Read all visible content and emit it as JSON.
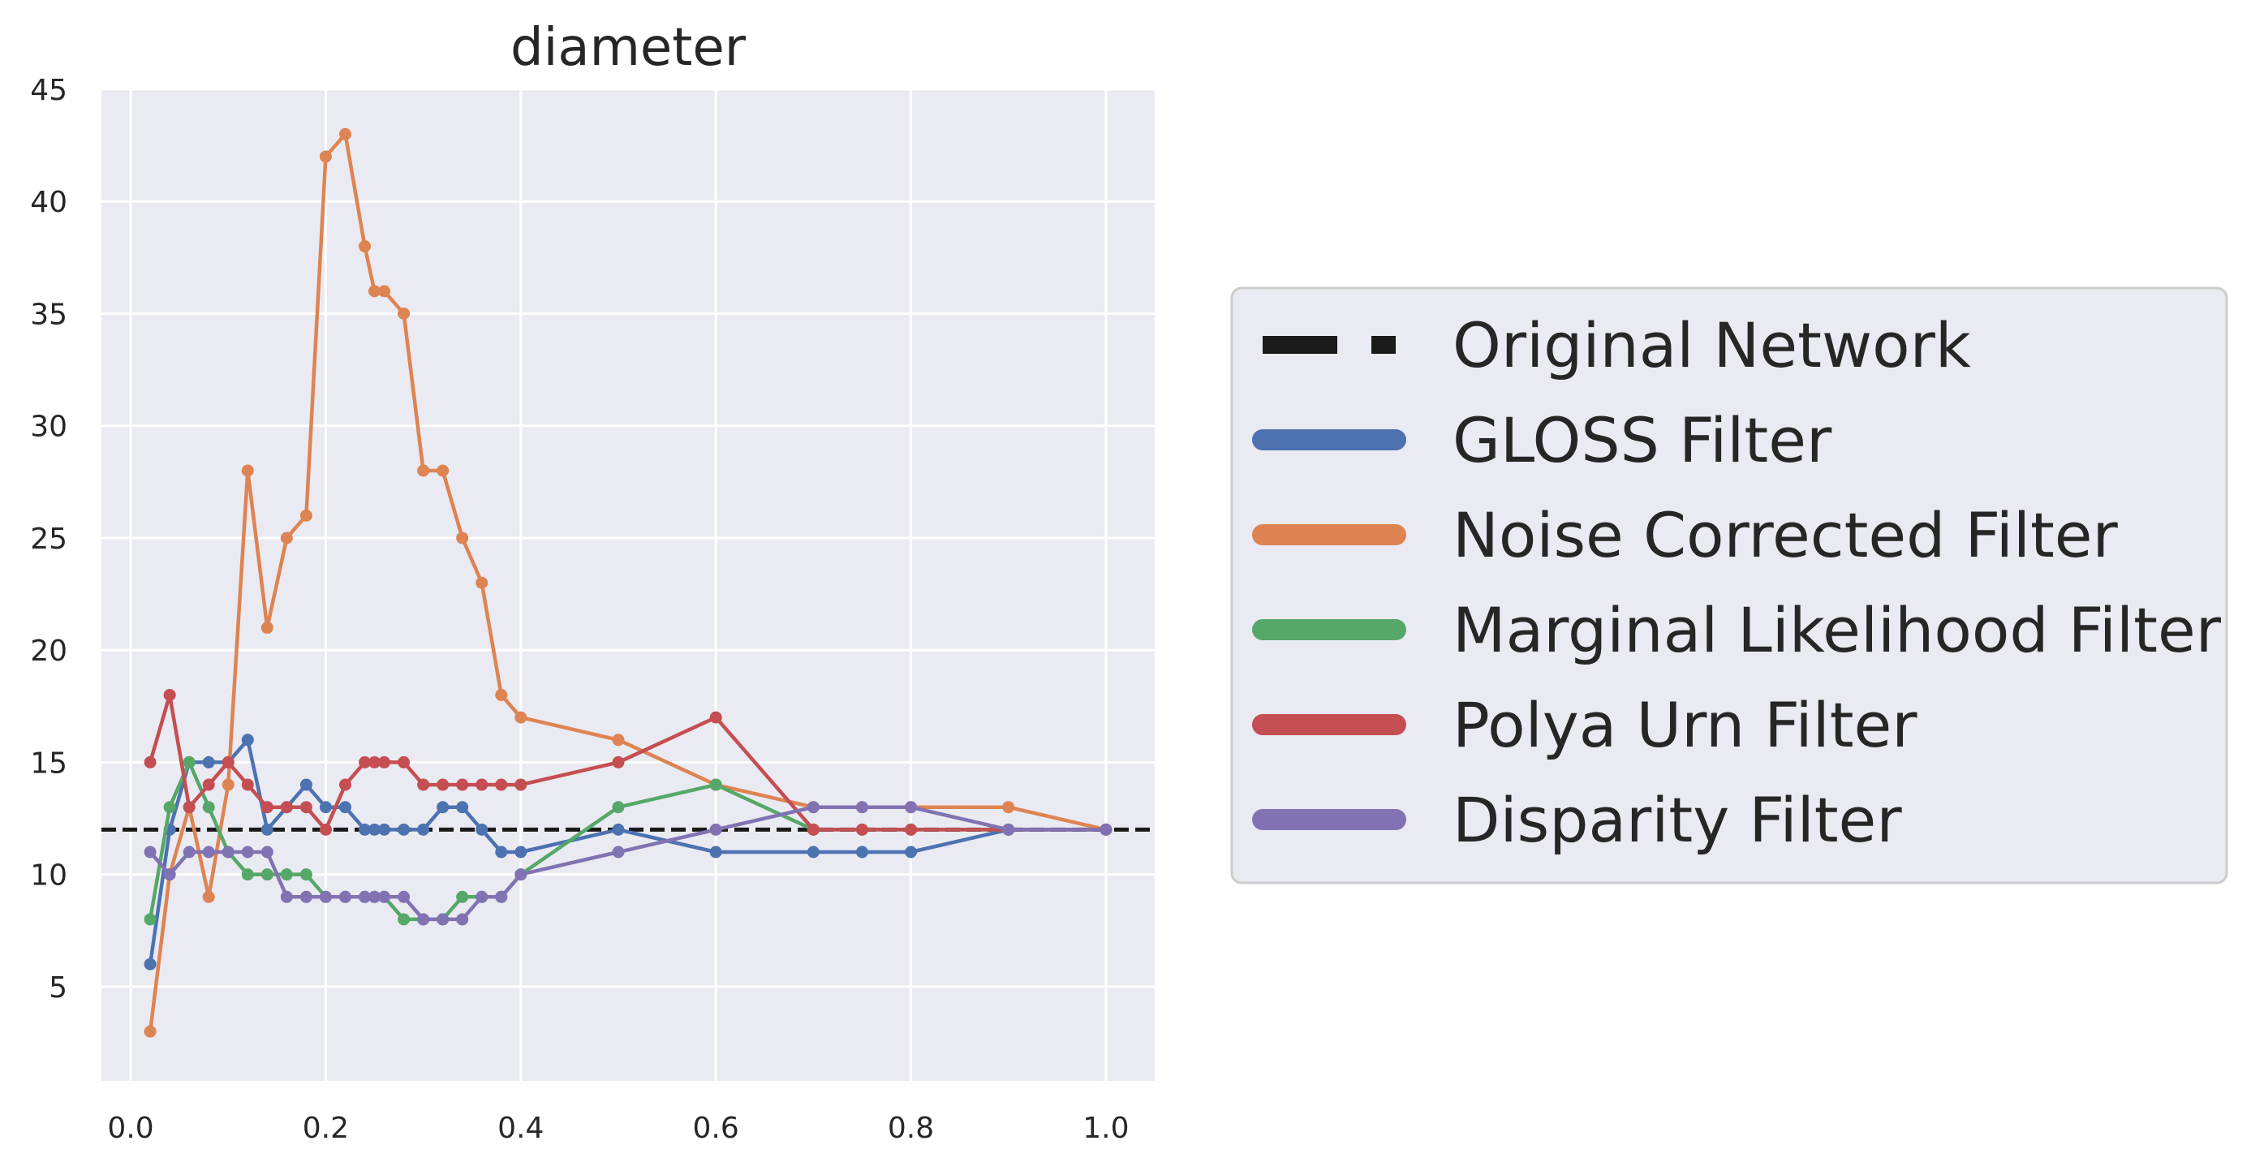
{
  "chart_data": {
    "type": "line",
    "title": "diameter",
    "xlabel": "",
    "ylabel": "",
    "xlim": [
      -0.03,
      1.05
    ],
    "ylim": [
      0.8,
      45
    ],
    "xticks": [
      0.0,
      0.2,
      0.4,
      0.6,
      0.8,
      1.0
    ],
    "xtick_labels": [
      "0.0",
      "0.2",
      "0.4",
      "0.6",
      "0.8",
      "1.0"
    ],
    "yticks": [
      5,
      10,
      15,
      20,
      25,
      30,
      35,
      40,
      45
    ],
    "ytick_labels": [
      "5",
      "10",
      "15",
      "20",
      "25",
      "30",
      "35",
      "40",
      "45"
    ],
    "grid": true,
    "legend_position": "right",
    "reference_line": {
      "name": "Original Network",
      "y": 12,
      "color": "#1a1a1a",
      "style": "dashed"
    },
    "series": [
      {
        "name": "GLOSS Filter",
        "color": "#4c72b0",
        "x": [
          0.02,
          0.04,
          0.06,
          0.08,
          0.1,
          0.12,
          0.14,
          0.16,
          0.18,
          0.2,
          0.22,
          0.24,
          0.25,
          0.26,
          0.28,
          0.3,
          0.32,
          0.34,
          0.36,
          0.38,
          0.4,
          0.5,
          0.6,
          0.7,
          0.75,
          0.8,
          0.9,
          1.0
        ],
        "y": [
          6,
          12,
          15,
          15,
          15,
          16,
          12,
          13,
          14,
          13,
          13,
          12,
          12,
          12,
          12,
          12,
          13,
          13,
          12,
          11,
          11,
          12,
          11,
          11,
          11,
          11,
          12,
          12
        ]
      },
      {
        "name": "Noise Corrected Filter",
        "color": "#dd8452",
        "x": [
          0.02,
          0.04,
          0.06,
          0.08,
          0.1,
          0.12,
          0.14,
          0.16,
          0.18,
          0.2,
          0.22,
          0.24,
          0.25,
          0.26,
          0.28,
          0.3,
          0.32,
          0.34,
          0.36,
          0.38,
          0.4,
          0.5,
          0.6,
          0.7,
          0.75,
          0.8,
          0.9,
          1.0
        ],
        "y": [
          3,
          10,
          13,
          9,
          14,
          28,
          21,
          25,
          26,
          42,
          43,
          38,
          36,
          36,
          35,
          28,
          28,
          25,
          23,
          18,
          17,
          16,
          14,
          13,
          13,
          13,
          13,
          12
        ]
      },
      {
        "name": "Marginal Likelihood Filter",
        "color": "#55a868",
        "x": [
          0.02,
          0.04,
          0.06,
          0.08,
          0.1,
          0.12,
          0.14,
          0.16,
          0.18,
          0.2,
          0.22,
          0.24,
          0.25,
          0.26,
          0.28,
          0.3,
          0.32,
          0.34,
          0.36,
          0.38,
          0.4,
          0.5,
          0.6,
          0.7,
          0.75,
          0.8,
          0.9,
          1.0
        ],
        "y": [
          8,
          13,
          15,
          13,
          11,
          10,
          10,
          10,
          10,
          9,
          9,
          9,
          9,
          9,
          8,
          8,
          8,
          9,
          9,
          9,
          10,
          13,
          14,
          12,
          12,
          12,
          12,
          12
        ]
      },
      {
        "name": "Polya Urn Filter",
        "color": "#c44e52",
        "x": [
          0.02,
          0.04,
          0.06,
          0.08,
          0.1,
          0.12,
          0.14,
          0.16,
          0.18,
          0.2,
          0.22,
          0.24,
          0.25,
          0.26,
          0.28,
          0.3,
          0.32,
          0.34,
          0.36,
          0.38,
          0.4,
          0.5,
          0.6,
          0.7,
          0.75,
          0.8,
          0.9,
          1.0
        ],
        "y": [
          15,
          18,
          13,
          14,
          15,
          14,
          13,
          13,
          13,
          12,
          14,
          15,
          15,
          15,
          15,
          14,
          14,
          14,
          14,
          14,
          14,
          15,
          17,
          12,
          12,
          12,
          12,
          12
        ]
      },
      {
        "name": "Disparity Filter",
        "color": "#8172b3",
        "x": [
          0.02,
          0.04,
          0.06,
          0.08,
          0.1,
          0.12,
          0.14,
          0.16,
          0.18,
          0.2,
          0.22,
          0.24,
          0.25,
          0.26,
          0.28,
          0.3,
          0.32,
          0.34,
          0.36,
          0.38,
          0.4,
          0.5,
          0.6,
          0.7,
          0.75,
          0.8,
          0.9,
          1.0
        ],
        "y": [
          11,
          10,
          11,
          11,
          11,
          11,
          11,
          9,
          9,
          9,
          9,
          9,
          9,
          9,
          9,
          8,
          8,
          8,
          9,
          9,
          10,
          11,
          12,
          13,
          13,
          13,
          12,
          12
        ]
      }
    ]
  }
}
